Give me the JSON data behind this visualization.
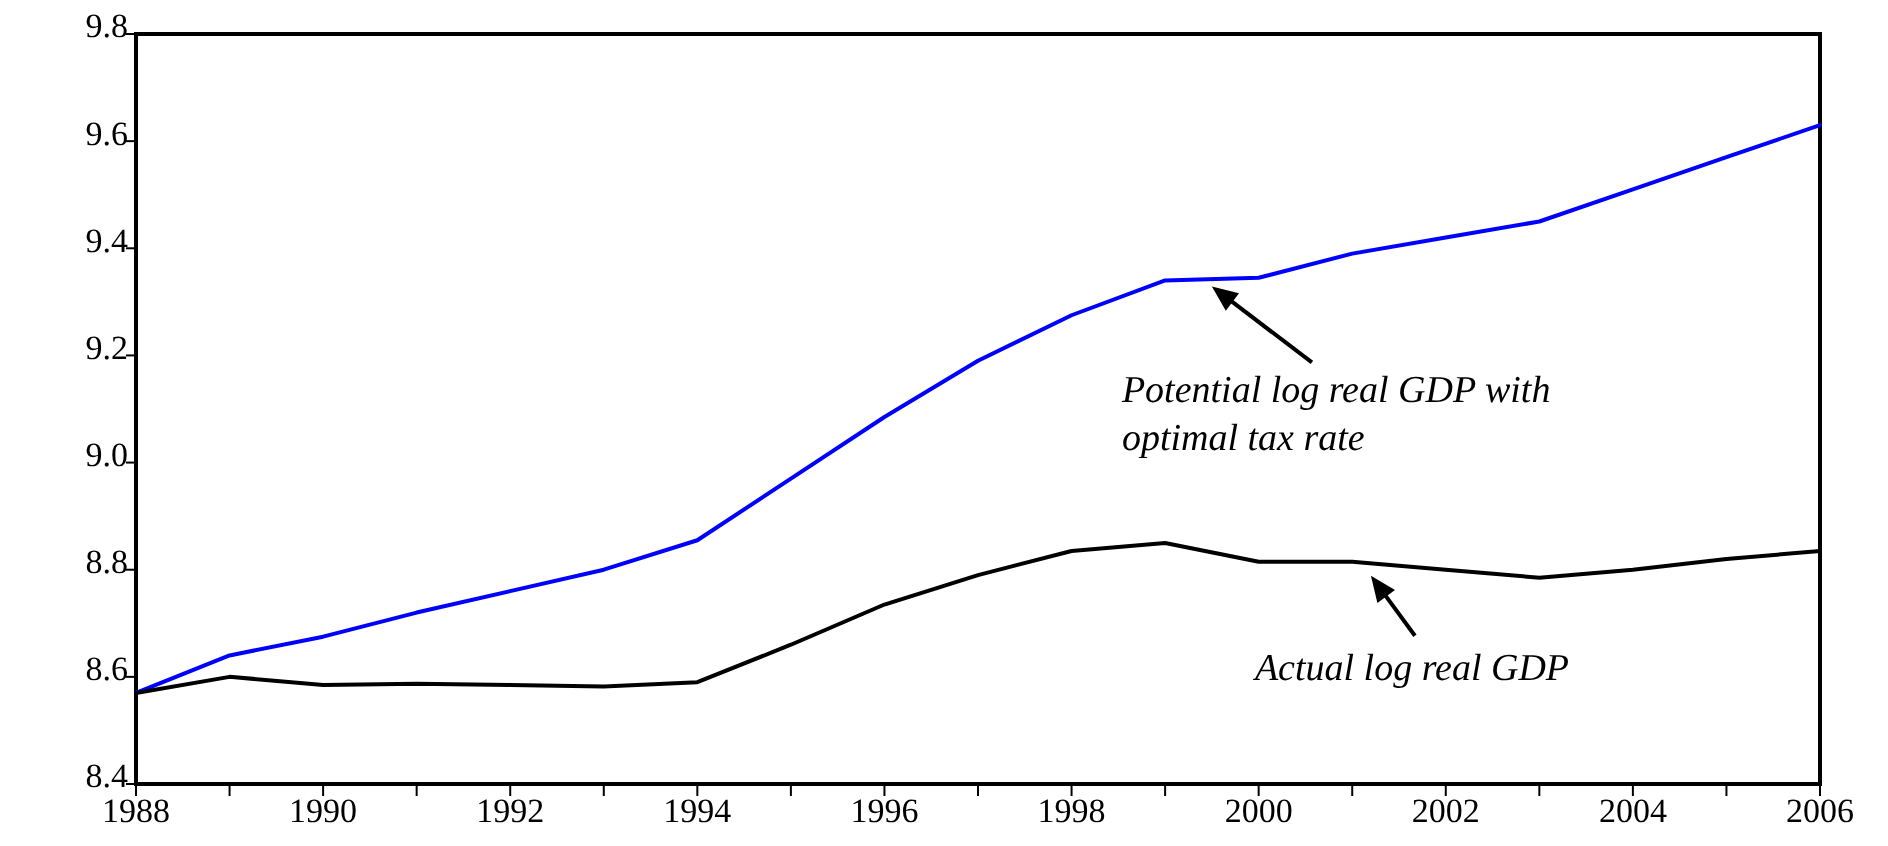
{
  "chart_data": {
    "type": "line",
    "x": [
      1988,
      1989,
      1990,
      1991,
      1992,
      1993,
      1994,
      1995,
      1996,
      1997,
      1998,
      1999,
      2000,
      2001,
      2002,
      2003,
      2004,
      2005,
      2006
    ],
    "series": [
      {
        "color": "#0000ff",
        "values": [
          8.57,
          8.64,
          8.675,
          8.72,
          8.76,
          8.8,
          8.855,
          8.97,
          9.085,
          9.19,
          9.275,
          9.34,
          9.345,
          9.39,
          9.42,
          9.45,
          9.51,
          9.57,
          9.63
        ]
      },
      {
        "color": "#000000",
        "values": [
          8.57,
          8.6,
          8.585,
          8.587,
          8.585,
          8.582,
          8.59,
          8.66,
          8.735,
          8.79,
          8.835,
          8.85,
          8.815,
          8.815,
          8.8,
          8.785,
          8.8,
          8.82,
          8.835
        ]
      }
    ],
    "xlim": [
      1988,
      2006
    ],
    "xticks": [
      1988,
      {
        "value": 1989,
        "label": null
      },
      1990,
      {
        "value": 1991,
        "label": null
      },
      1992,
      {
        "value": 1993,
        "label": null
      },
      1994,
      {
        "value": 1995,
        "label": null
      },
      1996,
      {
        "value": 1997,
        "label": null
      },
      1998,
      {
        "value": 1999,
        "label": null
      },
      2000,
      {
        "value": 2001,
        "label": null
      },
      2002,
      {
        "value": 2003,
        "label": null
      },
      2004,
      {
        "value": 2005,
        "label": null
      },
      2006
    ],
    "ylim": [
      8.4,
      9.8
    ],
    "yticks": [
      8.4,
      8.6,
      8.8,
      {
        "value": 9.0,
        "label": "9.0"
      },
      9.2,
      9.4,
      9.6,
      9.8
    ],
    "annotations": [
      {
        "text": "Potential log real GDP with optimal tax rate",
        "x": 1999.5,
        "y": 9.34
      },
      {
        "text": "Actual log real GDP",
        "x": 2001.2,
        "y": 8.8
      }
    ],
    "grid": false,
    "marker": "none",
    "line_style": "solid"
  }
}
